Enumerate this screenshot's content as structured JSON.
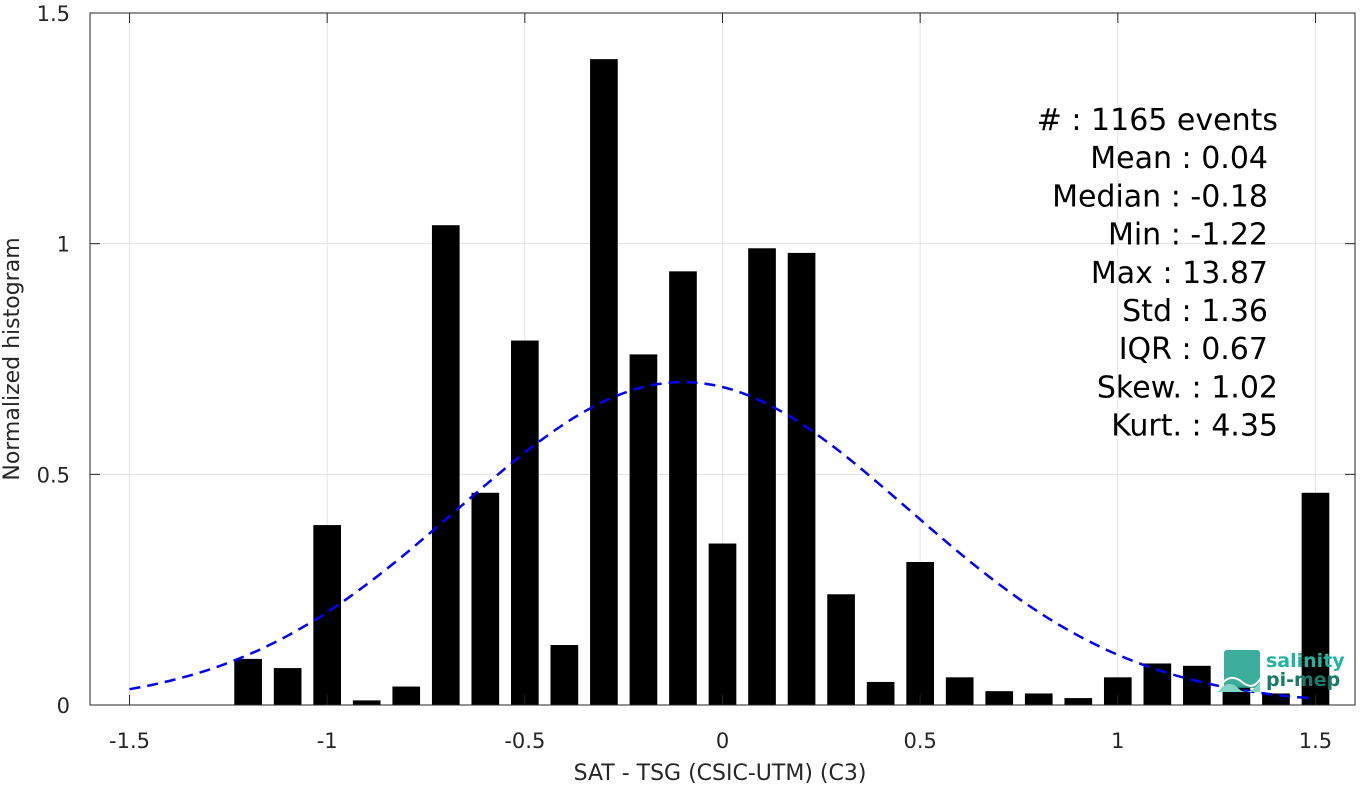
{
  "chart_data": {
    "type": "bar",
    "title": "",
    "xlabel": "SAT - TSG (CSIC-UTM) (C3)",
    "ylabel": "Normalized histogram",
    "xlim": [
      -1.6,
      1.6
    ],
    "ylim": [
      0,
      1.5
    ],
    "grid": true,
    "x_ticks": [
      "-1.5",
      "-1",
      "-0.5",
      "0",
      "0.5",
      "1",
      "1.5"
    ],
    "x_tick_values": [
      -1.5,
      -1,
      -0.5,
      0,
      0.5,
      1,
      1.5
    ],
    "y_ticks": [
      "0",
      "0.5",
      "1",
      "1.5"
    ],
    "y_tick_values": [
      0,
      0.5,
      1,
      1.5
    ],
    "bar_width": 0.07,
    "bars": {
      "x": [
        -1.2,
        -1.1,
        -1.0,
        -0.9,
        -0.8,
        -0.7,
        -0.6,
        -0.5,
        -0.4,
        -0.3,
        -0.2,
        -0.1,
        0.0,
        0.1,
        0.2,
        0.3,
        0.4,
        0.5,
        0.6,
        0.7,
        0.8,
        0.9,
        1.0,
        1.1,
        1.2,
        1.3,
        1.4,
        1.5
      ],
      "values": [
        0.1,
        0.08,
        0.39,
        0.01,
        0.04,
        1.04,
        0.46,
        0.79,
        0.13,
        1.4,
        0.76,
        0.94,
        0.35,
        0.99,
        0.98,
        0.24,
        0.05,
        0.31,
        0.06,
        0.03,
        0.025,
        0.015,
        0.06,
        0.09,
        0.085,
        0.04,
        0.025,
        0.46
      ]
    },
    "fit_curve": {
      "style": "dashed",
      "color": "#0000ff",
      "mean": -0.1,
      "std": 0.57,
      "peak": 0.7,
      "x_range": [
        -1.5,
        1.5
      ]
    },
    "stats": [
      "#  : 1165 events",
      "Mean : 0.04",
      "Median : -0.18",
      "Min : -1.22",
      "Max : 13.87",
      "Std : 1.36",
      "IQR : 0.67",
      "Skew. : 1.02",
      "Kurt. : 4.35"
    ]
  },
  "logo": {
    "line1": "salinity",
    "line2": "pi-mep"
  },
  "colors": {
    "bars": "#000000",
    "fit": "#0000ff",
    "logo": "#1a9e8a"
  }
}
